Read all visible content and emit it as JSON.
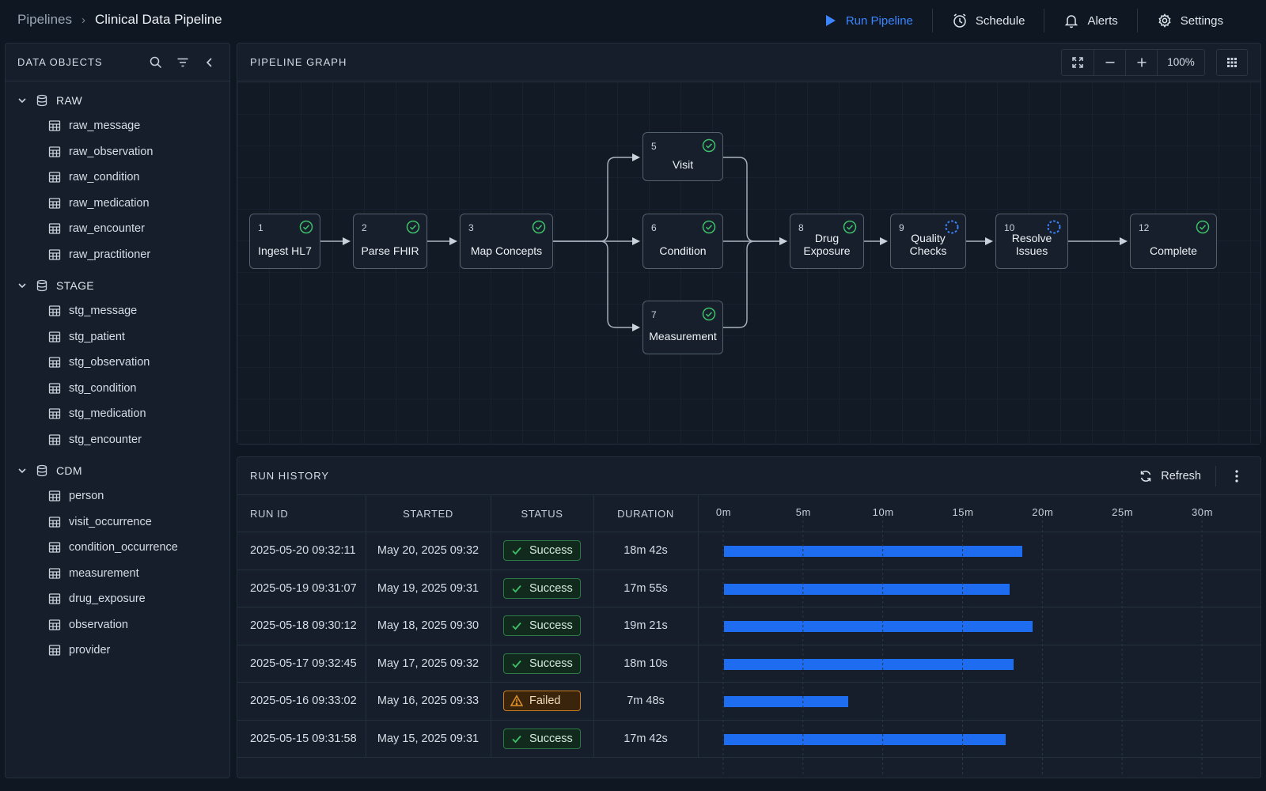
{
  "breadcrumb": {
    "root": "Pipelines",
    "current": "Clinical Data Pipeline"
  },
  "top_actions": {
    "run": "Run Pipeline",
    "schedule": "Schedule",
    "alerts": "Alerts",
    "settings": "Settings"
  },
  "left_panel": {
    "title": "DATA OBJECTS",
    "groups": [
      {
        "label": "RAW",
        "items": [
          "raw_message",
          "raw_observation",
          "raw_condition",
          "raw_medication",
          "raw_encounter",
          "raw_practitioner"
        ]
      },
      {
        "label": "STAGE",
        "items": [
          "stg_message",
          "stg_patient",
          "stg_observation",
          "stg_condition",
          "stg_medication",
          "stg_encounter"
        ]
      },
      {
        "label": "CDM",
        "items": [
          "person",
          "visit_occurrence",
          "condition_occurrence",
          "measurement",
          "drug_exposure",
          "observation",
          "provider"
        ]
      }
    ]
  },
  "graph": {
    "title": "PIPELINE GRAPH",
    "zoom": "100%",
    "nodes": [
      {
        "id": "1",
        "label": "Ingest HL7",
        "status": "success"
      },
      {
        "id": "2",
        "label": "Parse FHIR",
        "status": "success"
      },
      {
        "id": "3",
        "label": "Map Concepts",
        "status": "success"
      },
      {
        "id": "5",
        "label": "Visit",
        "status": "success"
      },
      {
        "id": "6",
        "label": "Condition",
        "status": "success"
      },
      {
        "id": "7",
        "label": "Measurement",
        "status": "success"
      },
      {
        "id": "8",
        "label": "Drug Exposure",
        "status": "success"
      },
      {
        "id": "9",
        "label": "Quality Checks",
        "status": "running"
      },
      {
        "id": "10",
        "label": "Resolve Issues",
        "status": "running"
      },
      {
        "id": "12",
        "label": "Complete",
        "status": "success"
      }
    ]
  },
  "history": {
    "title": "RUN HISTORY",
    "refresh": "Refresh",
    "columns": {
      "run_id": "RUN ID",
      "started": "STARTED",
      "status": "STATUS",
      "duration": "DURATION"
    },
    "timeline_ticks": [
      "0m",
      "5m",
      "10m",
      "15m",
      "20m",
      "25m",
      "30m"
    ],
    "timeline_max_minutes": 30,
    "runs": [
      {
        "run_id": "2025-05-20 09:32:11",
        "started": "May 20, 2025 09:32",
        "status": "Success",
        "duration": "18m 42s",
        "minutes": 18.7
      },
      {
        "run_id": "2025-05-19 09:31:07",
        "started": "May 19, 2025 09:31",
        "status": "Success",
        "duration": "17m 55s",
        "minutes": 17.92
      },
      {
        "run_id": "2025-05-18 09:30:12",
        "started": "May 18, 2025 09:30",
        "status": "Success",
        "duration": "19m 21s",
        "minutes": 19.35
      },
      {
        "run_id": "2025-05-17 09:32:45",
        "started": "May 17, 2025 09:32",
        "status": "Success",
        "duration": "18m 10s",
        "minutes": 18.17
      },
      {
        "run_id": "2025-05-16 09:33:02",
        "started": "May 16, 2025 09:33",
        "status": "Failed",
        "duration": "7m 48s",
        "minutes": 7.8
      },
      {
        "run_id": "2025-05-15 09:31:58",
        "started": "May 15, 2025 09:31",
        "status": "Success",
        "duration": "17m 42s",
        "minutes": 17.7
      }
    ]
  },
  "colors": {
    "accent": "#3b86ff",
    "bar": "#1e6cf0",
    "success": "#3fbf6a",
    "running": "#3b86ff",
    "failed": "#e0912a"
  }
}
